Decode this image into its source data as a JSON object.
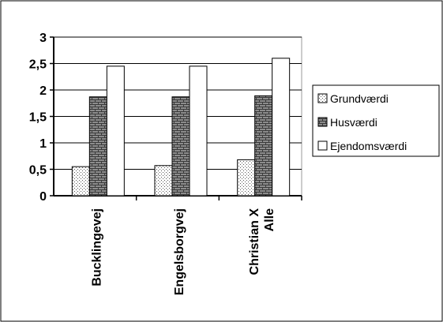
{
  "chart_data": {
    "type": "bar",
    "categories": [
      "Bucklingevej",
      "Engelsborgvej",
      "Christian X Alle"
    ],
    "category_lines": [
      [
        "Bucklingevej"
      ],
      [
        "Engelsborgvej"
      ],
      [
        "Christian X",
        "Alle"
      ]
    ],
    "series": [
      {
        "name": "Grundværdi",
        "values": [
          0.55,
          0.57,
          0.68
        ],
        "pattern": "dots"
      },
      {
        "name": "Husværdi",
        "values": [
          1.87,
          1.87,
          1.89
        ],
        "pattern": "brick"
      },
      {
        "name": "Ejendomsværdi",
        "values": [
          2.45,
          2.45,
          2.6
        ],
        "pattern": "white"
      }
    ],
    "yticks": [
      "0",
      "0,5",
      "1",
      "1,5",
      "2",
      "2,5",
      "3"
    ],
    "ylim": [
      0,
      3
    ],
    "grid": true,
    "legend_position": "right",
    "colors": {
      "brick": "#8c8c8c",
      "mortar": "#3a3a3a",
      "dots": "#555555",
      "bar_outline": "#000000"
    }
  }
}
